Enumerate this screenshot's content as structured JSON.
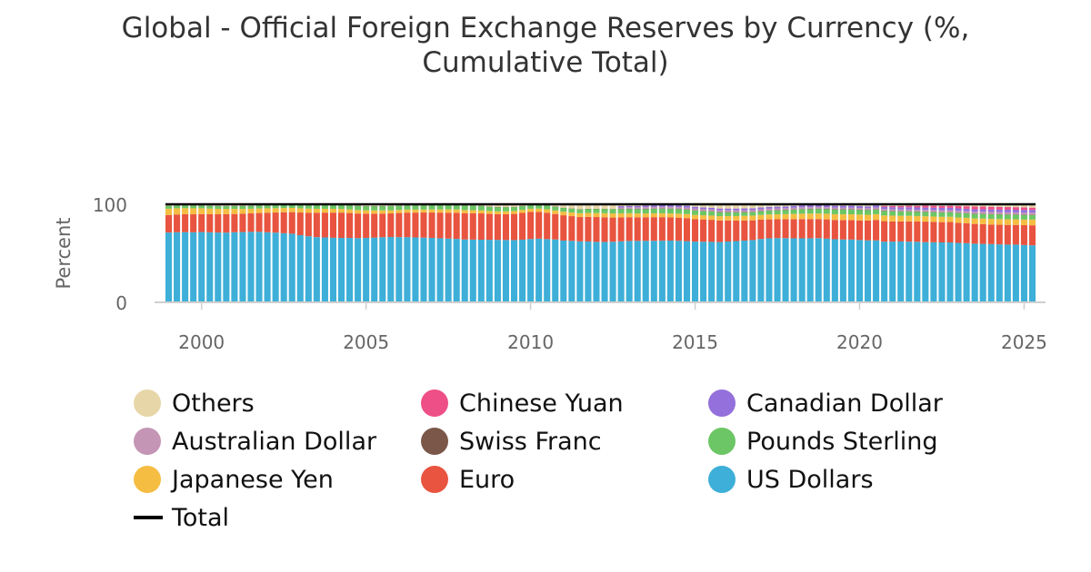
{
  "chart_data": {
    "type": "bar",
    "stacked": true,
    "title": "Global - Official Foreign Exchange Reserves by Currency (%,\nCumulative Total)",
    "ylabel": "Percent",
    "xlabel": "",
    "ylim": [
      0,
      100
    ],
    "yticks": [
      "0",
      "100"
    ],
    "xtick_labels": [
      "2000",
      "2005",
      "2010",
      "2015",
      "2020",
      "2025"
    ],
    "x_start_quarter": "1999 Q1",
    "quarters_count": 106,
    "grid": false,
    "legend_position": "bottom",
    "stack_order": [
      "US Dollars",
      "Euro",
      "Japanese Yen",
      "Pounds Sterling",
      "Swiss Franc",
      "Australian Dollar",
      "Canadian Dollar",
      "Chinese Yuan",
      "Others"
    ],
    "colors": {
      "US Dollars": "#3dafd8",
      "Euro": "#e8543f",
      "Japanese Yen": "#f5bd42",
      "Pounds Sterling": "#6cc665",
      "Swiss Franc": "#7a5749",
      "Australian Dollar": "#c495b4",
      "Canadian Dollar": "#9370db",
      "Chinese Yuan": "#ee4f86",
      "Others": "#e7d6a7",
      "Total": "#000000"
    },
    "series": [
      {
        "name": "US Dollars",
        "values": [
          71.2,
          71.5,
          71.6,
          71.4,
          71.7,
          71.4,
          71.2,
          71.1,
          71.5,
          71.7,
          71.9,
          71.9,
          71.5,
          71.1,
          70.5,
          70.0,
          68.5,
          67.4,
          66.5,
          66.2,
          65.9,
          65.7,
          65.7,
          65.5,
          65.7,
          66.0,
          66.4,
          66.6,
          66.5,
          66.5,
          66.2,
          66.0,
          65.7,
          65.4,
          65.0,
          64.7,
          64.1,
          64.0,
          63.9,
          63.8,
          63.7,
          63.6,
          63.5,
          63.9,
          64.6,
          64.9,
          64.5,
          64.1,
          63.0,
          62.7,
          62.2,
          62.1,
          61.7,
          61.6,
          61.8,
          62.1,
          62.3,
          62.5,
          62.6,
          62.7,
          62.8,
          62.9,
          62.7,
          62.4,
          61.9,
          61.8,
          61.6,
          61.5,
          62.0,
          62.4,
          63.0,
          63.4,
          64.4,
          65.3,
          65.6,
          65.9,
          65.7,
          65.8,
          66.0,
          66.2,
          65.8,
          65.4,
          65.0,
          64.7,
          64.2,
          63.5,
          62.7,
          61.9,
          61.6,
          61.8,
          61.6,
          61.2,
          60.7,
          60.5,
          60.2,
          60.1,
          59.9,
          59.8,
          59.4,
          59.3,
          59.1,
          58.9,
          58.6,
          58.4,
          58.1,
          57.8
        ]
      },
      {
        "name": "Euro",
        "values": [
          17.9,
          18.1,
          18.3,
          18.4,
          18.3,
          18.4,
          18.6,
          18.8,
          18.6,
          18.7,
          18.9,
          19.2,
          19.9,
          20.5,
          21.4,
          22.0,
          23.1,
          24.0,
          24.9,
          25.3,
          25.6,
          25.8,
          25.4,
          25.1,
          24.7,
          24.4,
          24.1,
          24.1,
          24.6,
          25.0,
          25.3,
          25.6,
          25.9,
          26.2,
          26.4,
          26.6,
          26.8,
          26.9,
          26.8,
          26.4,
          26.2,
          26.3,
          26.7,
          27.3,
          27.6,
          27.3,
          26.9,
          26.0,
          25.8,
          25.2,
          24.8,
          25.1,
          25.3,
          25.1,
          24.7,
          24.4,
          24.1,
          24.0,
          24.0,
          24.1,
          24.0,
          23.7,
          23.6,
          23.5,
          23.0,
          22.7,
          22.5,
          22.0,
          21.5,
          20.9,
          20.5,
          20.1,
          19.6,
          19.3,
          19.2,
          19.5,
          19.6,
          19.8,
          19.8,
          19.7,
          19.9,
          20.0,
          20.1,
          20.0,
          20.2,
          20.4,
          20.7,
          20.9,
          20.5,
          20.3,
          20.6,
          20.5,
          20.7,
          20.6,
          20.4,
          20.5,
          20.3,
          20.2,
          20.0,
          20.1,
          19.8,
          19.9,
          20.0,
          19.9,
          20.1,
          20.3
        ]
      },
      {
        "name": "Japanese Yen",
        "values": [
          6.4,
          6.3,
          6.1,
          6.1,
          5.9,
          5.8,
          5.6,
          5.4,
          5.2,
          4.9,
          4.7,
          4.6,
          4.5,
          4.4,
          4.3,
          4.3,
          4.3,
          4.2,
          4.0,
          3.9,
          3.9,
          3.8,
          3.7,
          3.6,
          3.5,
          3.4,
          3.3,
          3.2,
          3.2,
          3.1,
          3.1,
          3.0,
          3.1,
          3.2,
          3.4,
          3.4,
          3.2,
          3.1,
          3.1,
          3.0,
          2.9,
          2.9,
          3.0,
          3.1,
          3.2,
          3.4,
          3.5,
          3.6,
          3.7,
          3.8,
          3.9,
          4.0,
          4.1,
          4.1,
          4.2,
          4.1,
          4.0,
          3.9,
          3.9,
          3.9,
          3.9,
          3.9,
          4.0,
          4.1,
          4.2,
          4.2,
          4.3,
          4.4,
          4.5,
          4.6,
          4.7,
          4.8,
          4.9,
          5.0,
          5.1,
          5.2,
          5.4,
          5.5,
          5.6,
          5.7,
          5.8,
          5.9,
          6.0,
          6.0,
          6.0,
          5.9,
          5.8,
          5.8,
          5.8,
          5.7,
          5.6,
          5.5,
          5.4,
          5.4,
          5.3,
          5.3,
          5.3,
          5.4,
          5.5,
          5.6,
          5.8,
          5.8,
          5.7,
          5.7,
          5.7,
          5.8
        ]
      },
      {
        "name": "Pounds Sterling",
        "values": [
          2.9,
          2.8,
          2.8,
          2.8,
          2.8,
          2.8,
          2.8,
          2.8,
          2.9,
          2.9,
          2.9,
          3.0,
          3.0,
          3.1,
          3.1,
          3.3,
          3.5,
          3.6,
          3.7,
          3.8,
          3.9,
          4.0,
          4.1,
          4.2,
          4.2,
          4.2,
          4.3,
          4.3,
          4.2,
          4.3,
          4.3,
          4.4,
          4.4,
          4.5,
          4.5,
          4.7,
          4.8,
          4.8,
          4.6,
          4.3,
          4.3,
          4.2,
          4.1,
          4.0,
          4.2,
          4.3,
          4.1,
          3.9,
          3.9,
          3.9,
          4.0,
          4.1,
          4.2,
          4.3,
          4.4,
          4.4,
          4.5,
          4.5,
          4.6,
          4.7,
          4.8,
          4.9,
          4.8,
          4.7,
          4.5,
          4.4,
          4.3,
          4.1,
          4.0,
          3.9,
          3.8,
          3.7,
          3.8,
          4.0,
          4.1,
          4.3,
          4.5,
          4.7,
          4.8,
          4.9,
          5.0,
          5.0,
          5.0,
          5.0,
          5.0,
          4.9,
          4.8,
          4.7,
          4.6,
          4.5,
          4.5,
          4.5,
          4.5,
          4.5,
          4.5,
          4.5,
          4.6,
          4.6,
          4.7,
          4.8,
          4.8,
          4.8,
          4.8,
          4.8,
          4.8,
          4.7
        ]
      },
      {
        "name": "Swiss Franc",
        "values": [
          0.3,
          0.3,
          0.3,
          0.3,
          0.3,
          0.3,
          0.3,
          0.3,
          0.3,
          0.3,
          0.3,
          0.3,
          0.3,
          0.3,
          0.3,
          0.3,
          0.3,
          0.3,
          0.3,
          0.3,
          0.3,
          0.3,
          0.2,
          0.2,
          0.2,
          0.2,
          0.2,
          0.2,
          0.2,
          0.2,
          0.2,
          0.2,
          0.2,
          0.2,
          0.2,
          0.2,
          0.2,
          0.1,
          0.1,
          0.1,
          0.1,
          0.1,
          0.1,
          0.1,
          0.1,
          0.1,
          0.1,
          0.1,
          0.1,
          0.1,
          0.1,
          0.1,
          0.1,
          0.1,
          0.1,
          0.1,
          0.1,
          0.1,
          0.1,
          0.1,
          0.1,
          0.1,
          0.1,
          0.1,
          0.1,
          0.1,
          0.1,
          0.1,
          0.1,
          0.1,
          0.1,
          0.1,
          0.1,
          0.1,
          0.1,
          0.1,
          0.1,
          0.1,
          0.1,
          0.1,
          0.1,
          0.1,
          0.1,
          0.1,
          0.1,
          0.1,
          0.1,
          0.1,
          0.1,
          0.1,
          0.1,
          0.1,
          0.1,
          0.1,
          0.1,
          0.1,
          0.1,
          0.1,
          0.1,
          0.1,
          0.1,
          0.1,
          0.1,
          0.1,
          0.1,
          0.1
        ]
      },
      {
        "name": "Australian Dollar",
        "values": [
          0,
          0,
          0,
          0,
          0,
          0,
          0,
          0,
          0,
          0,
          0,
          0,
          0,
          0,
          0,
          0,
          0,
          0,
          0,
          0,
          0,
          0,
          0,
          0,
          0,
          0,
          0,
          0,
          0,
          0,
          0,
          0,
          0,
          0,
          0,
          0,
          0,
          0,
          0,
          0,
          0,
          0,
          0,
          0,
          0,
          0,
          0,
          0,
          0,
          0,
          0,
          0,
          0,
          0,
          0,
          1.4,
          1.5,
          1.6,
          1.7,
          1.7,
          1.7,
          1.8,
          1.8,
          1.8,
          1.8,
          1.7,
          1.7,
          1.7,
          1.7,
          1.8,
          1.8,
          1.8,
          1.8,
          1.8,
          1.8,
          1.7,
          1.8,
          1.8,
          1.8,
          1.8,
          1.7,
          1.7,
          1.7,
          1.7,
          1.7,
          1.7,
          1.8,
          1.8,
          1.8,
          1.8,
          1.8,
          1.8,
          1.9,
          1.9,
          2.0,
          2.0,
          2.0,
          2.0,
          2.0,
          2.1,
          2.1,
          2.1,
          2.1,
          2.1,
          2.1,
          2.2
        ]
      },
      {
        "name": "Canadian Dollar",
        "values": [
          0,
          0,
          0,
          0,
          0,
          0,
          0,
          0,
          0,
          0,
          0,
          0,
          0,
          0,
          0,
          0,
          0,
          0,
          0,
          0,
          0,
          0,
          0,
          0,
          0,
          0,
          0,
          0,
          0,
          0,
          0,
          0,
          0,
          0,
          0,
          0,
          0,
          0,
          0,
          0,
          0,
          0,
          0,
          0,
          0,
          0,
          0,
          0,
          0,
          0,
          0,
          0,
          0,
          0,
          0,
          1.4,
          1.4,
          1.5,
          1.6,
          1.7,
          1.8,
          1.8,
          1.8,
          1.9,
          1.9,
          1.9,
          1.9,
          1.9,
          1.9,
          1.9,
          1.9,
          1.9,
          1.9,
          1.9,
          1.8,
          1.8,
          1.9,
          2.0,
          2.0,
          2.0,
          2.0,
          2.0,
          2.0,
          2.0,
          1.9,
          1.9,
          2.0,
          2.1,
          2.1,
          2.2,
          2.3,
          2.3,
          2.3,
          2.4,
          2.4,
          2.4,
          2.5,
          2.5,
          2.5,
          2.5,
          2.5,
          2.6,
          2.7,
          2.7,
          2.8,
          2.8
        ]
      },
      {
        "name": "Chinese Yuan",
        "values": [
          0,
          0,
          0,
          0,
          0,
          0,
          0,
          0,
          0,
          0,
          0,
          0,
          0,
          0,
          0,
          0,
          0,
          0,
          0,
          0,
          0,
          0,
          0,
          0,
          0,
          0,
          0,
          0,
          0,
          0,
          0,
          0,
          0,
          0,
          0,
          0,
          0,
          0,
          0,
          0,
          0,
          0,
          0,
          0,
          0,
          0,
          0,
          0,
          0,
          0,
          0,
          0,
          0,
          0,
          0,
          0,
          0,
          0,
          0,
          0,
          0,
          0,
          0,
          0,
          0,
          0,
          0,
          0,
          0,
          0,
          0,
          0,
          0,
          0,
          0,
          0,
          0,
          0,
          0,
          0,
          0,
          0,
          0,
          0,
          0,
          0,
          0,
          1.1,
          1.2,
          1.3,
          1.5,
          1.6,
          1.9,
          1.9,
          2.0,
          2.0,
          2.3,
          2.5,
          2.8,
          2.8,
          2.8,
          2.8,
          2.7,
          2.6,
          2.5,
          2.3
        ]
      },
      {
        "name": "Others",
        "values": [
          1.3,
          1.0,
          0.9,
          1.0,
          1.0,
          1.3,
          1.5,
          1.6,
          1.5,
          1.5,
          1.3,
          1.0,
          0.8,
          0.6,
          0.4,
          0.1,
          0.3,
          0.5,
          0.6,
          0.5,
          0.4,
          0.4,
          0.9,
          1.4,
          1.7,
          1.8,
          1.7,
          1.6,
          1.3,
          0.9,
          0.9,
          0.8,
          0.7,
          0.6,
          0.5,
          0.4,
          0.9,
          1.1,
          1.5,
          2.4,
          2.8,
          2.9,
          2.6,
          1.6,
          0.3,
          0.0,
          0.9,
          2.3,
          3.5,
          4.3,
          5.0,
          4.6,
          4.6,
          4.7,
          4.8,
          1.9,
          1.6,
          1.6,
          1.3,
          1.0,
          0.8,
          0.8,
          1.1,
          1.5,
          2.5,
          3.1,
          3.5,
          4.3,
          4.3,
          4.3,
          4.2,
          4.0,
          3.2,
          2.6,
          2.4,
          2.2,
          1.6,
          1.1,
          0.9,
          0.7,
          1.0,
          1.5,
          1.5,
          1.5,
          1.9,
          2.1,
          1.3,
          1.6,
          1.7,
          1.8,
          1.5,
          1.6,
          1.4,
          1.5,
          1.6,
          1.5,
          1.8,
          2.0,
          2.3,
          2.2,
          2.5,
          2.6,
          2.8,
          2.9,
          3.2,
          3.4
        ]
      }
    ],
    "total": 100
  }
}
